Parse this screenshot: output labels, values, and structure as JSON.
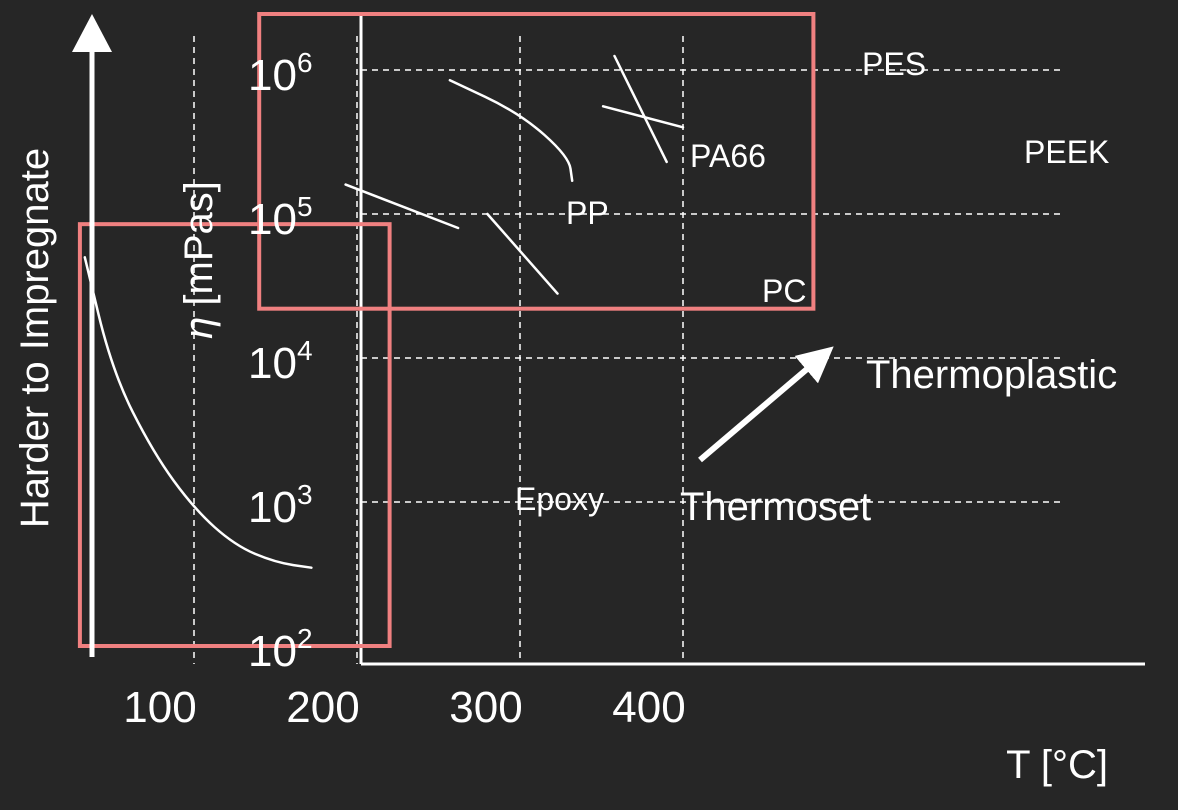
{
  "chart_data": {
    "type": "line",
    "title": "",
    "xlabel": "T [°C]",
    "ylabel": "η [mPas]",
    "side_arrow_label": "Harder to Impregnate",
    "x_ticks": [
      "100",
      "200",
      "300",
      "400"
    ],
    "x_tick_values": [
      100,
      200,
      300,
      400
    ],
    "y_ticks": [
      {
        "base": "10",
        "exp": "2",
        "value": 100
      },
      {
        "base": "10",
        "exp": "3",
        "value": 1000
      },
      {
        "base": "10",
        "exp": "4",
        "value": 10000
      },
      {
        "base": "10",
        "exp": "5",
        "value": 100000
      },
      {
        "base": "10",
        "exp": "6",
        "value": 1000000
      }
    ],
    "y_scale": "log",
    "grid": "dashed",
    "series": [
      {
        "name": "Epoxy",
        "x": [
          33,
          50,
          75,
          100,
          125,
          150,
          172
        ],
        "y": [
          50000,
          8000,
          2200,
          900,
          500,
          380,
          350
        ]
      },
      {
        "name": "PP",
        "x": [
          193,
          262
        ],
        "y": [
          160000,
          80000
        ]
      },
      {
        "name": "PC",
        "x": [
          280,
          323
        ],
        "y": [
          100000,
          28000
        ]
      },
      {
        "name": "PA66",
        "x": [
          257,
          300,
          330,
          332
        ],
        "y": [
          850000,
          500000,
          250000,
          170000
        ]
      },
      {
        "name": "PES",
        "x": [
          358,
          390
        ],
        "y": [
          1250000,
          230000
        ]
      },
      {
        "name": "PEEK",
        "x": [
          351,
          400
        ],
        "y": [
          560000,
          400000
        ]
      }
    ],
    "regions": [
      {
        "name": "Thermoset",
        "x": [
          30,
          220
        ],
        "y": [
          100,
          85000
        ]
      },
      {
        "name": "Thermoplastic",
        "x": [
          140,
          480
        ],
        "y": [
          22000,
          13000000
        ]
      }
    ],
    "region_color": "#f08080"
  }
}
